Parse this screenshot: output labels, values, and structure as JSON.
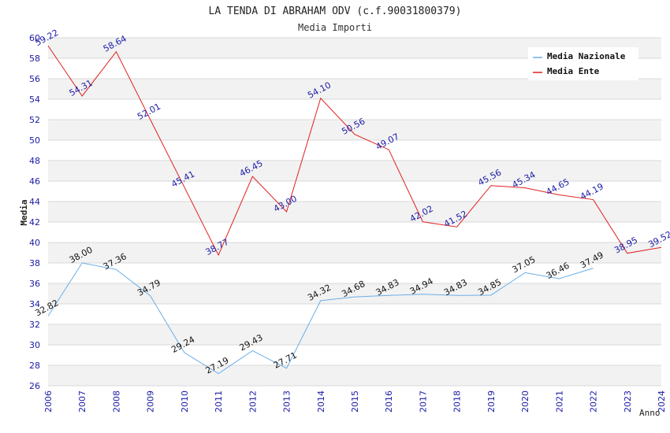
{
  "chart_data": {
    "type": "line",
    "title": "LA TENDA DI ABRAHAM ODV (c.f.90031800379)",
    "subtitle": "Media Importi",
    "xlabel": "Anno",
    "ylabel": "Media",
    "ylim": [
      26,
      60
    ],
    "ytick_step": 2,
    "x": [
      "2006",
      "2007",
      "2008",
      "2009",
      "2010",
      "2011",
      "2012",
      "2013",
      "2014",
      "2015",
      "2016",
      "2017",
      "2018",
      "2019",
      "2020",
      "2021",
      "2022",
      "2023",
      "2024"
    ],
    "grid": true,
    "legend_position": "top-right",
    "series": [
      {
        "name": "Media Nazionale",
        "color": "#6aaee8",
        "label_color": "#111111",
        "values": [
          32.82,
          38.0,
          37.36,
          34.79,
          29.24,
          27.19,
          29.43,
          27.71,
          34.32,
          34.68,
          34.83,
          34.94,
          34.83,
          34.85,
          37.05,
          36.46,
          37.49,
          null,
          null
        ],
        "labels": [
          "32.82",
          "38.00",
          "37.36",
          "34.79",
          "29.24",
          "27.19",
          "29.43",
          "27.71",
          "34.32",
          "34.68",
          "34.83",
          "34.94",
          "34.83",
          "34.85",
          "37.05",
          "36.46",
          "37.49",
          null,
          null
        ]
      },
      {
        "name": "Media Ente",
        "color": "#e02020",
        "label_color": "#1a1aa6",
        "values": [
          59.22,
          54.31,
          58.64,
          52.01,
          45.41,
          38.77,
          46.45,
          43.0,
          54.1,
          50.56,
          49.07,
          42.02,
          41.52,
          45.56,
          45.34,
          44.65,
          44.19,
          38.95,
          39.52
        ],
        "labels": [
          "59.22",
          "54.31",
          "58.64",
          "52.01",
          "45.41",
          "38.77",
          "46.45",
          "43.00",
          "54.10",
          "50.56",
          "49.07",
          "42.02",
          "41.52",
          "45.56",
          "45.34",
          "44.65",
          "44.19",
          "38.95",
          "39.52"
        ]
      }
    ]
  }
}
